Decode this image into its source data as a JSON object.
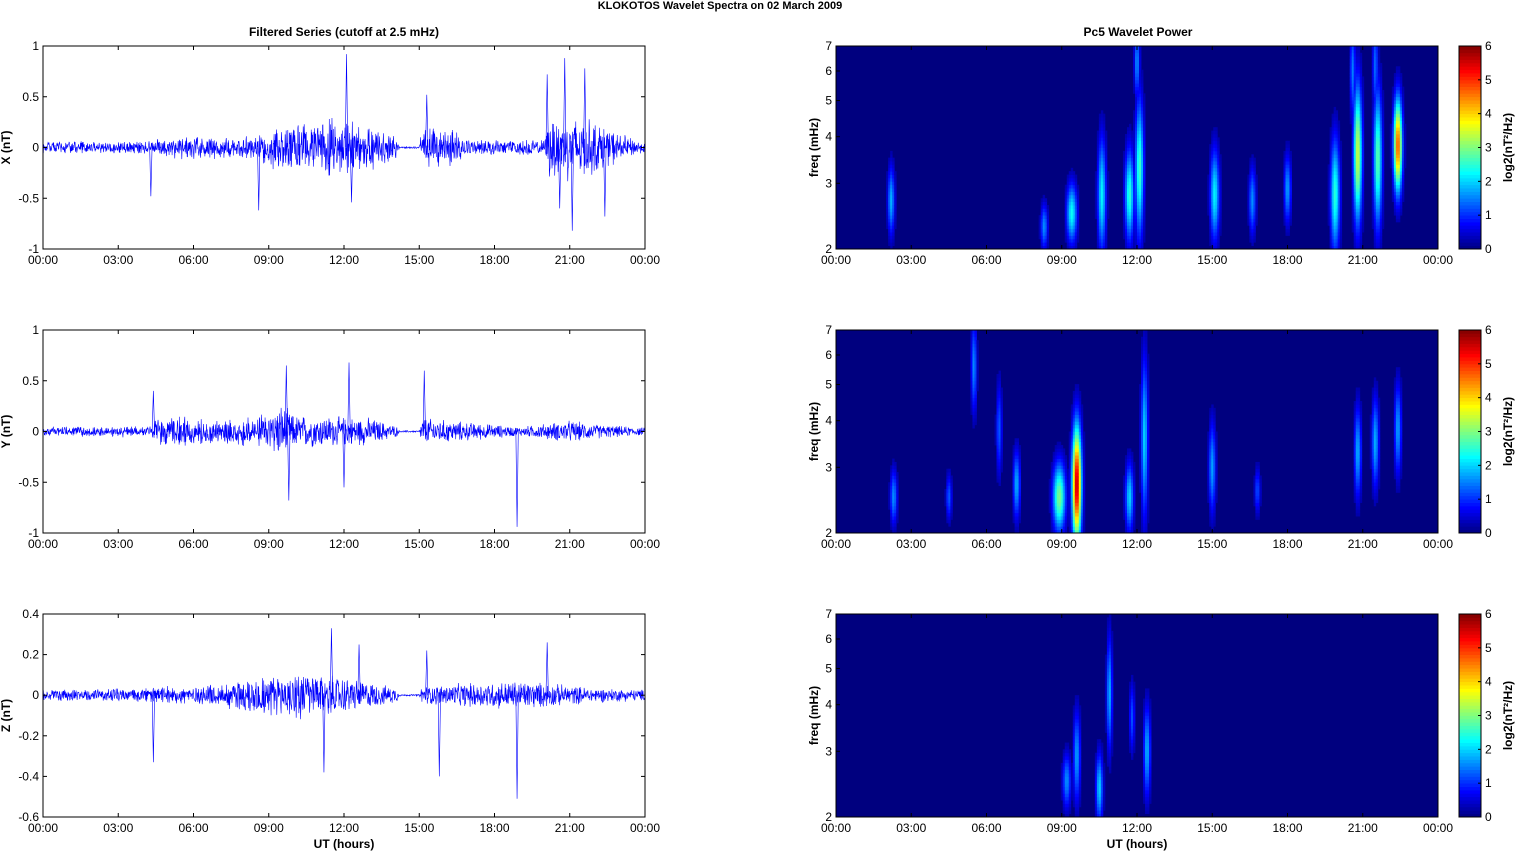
{
  "figure_title": "KLOKOTOS Wavelet Spectra on 02 March      2009",
  "left_title": "Filtered Series (cutoff at 2.5 mHz)",
  "right_title": "Pc5 Wavelet Power",
  "xlabel": "UT (hours)",
  "x_tick_labels": [
    "00:00",
    "03:00",
    "06:00",
    "09:00",
    "12:00",
    "15:00",
    "18:00",
    "21:00",
    "00:00"
  ],
  "colors": {
    "trace": "#0000ff",
    "background": "#00007f"
  },
  "chart_data": [
    {
      "type": "line",
      "ylabel": "X (nT)",
      "xlim": [
        0,
        24
      ],
      "ylim": [
        -1,
        1
      ],
      "y_ticks": [
        "1",
        "0.5",
        "0",
        "-0.5",
        "-1"
      ],
      "y_tick_values": [
        1,
        0.5,
        0,
        -0.5,
        -1
      ],
      "series": [
        {
          "envelope": [
            {
              "x": 0,
              "amp": 0.06
            },
            {
              "x": 4.3,
              "amp": 0.07
            },
            {
              "x": 4.5,
              "amp": 0.12
            },
            {
              "x": 8.5,
              "amp": 0.12
            },
            {
              "x": 9,
              "amp": 0.22
            },
            {
              "x": 11.5,
              "amp": 0.3
            },
            {
              "x": 13,
              "amp": 0.25
            },
            {
              "x": 14.1,
              "amp": 0.12
            },
            {
              "x": 14.2,
              "amp": 0.01
            },
            {
              "x": 15.0,
              "amp": 0.01
            },
            {
              "x": 15.1,
              "amp": 0.2
            },
            {
              "x": 16.5,
              "amp": 0.2
            },
            {
              "x": 17,
              "amp": 0.08
            },
            {
              "x": 20,
              "amp": 0.08
            },
            {
              "x": 20.2,
              "amp": 0.35
            },
            {
              "x": 21.5,
              "amp": 0.35
            },
            {
              "x": 23,
              "amp": 0.15
            },
            {
              "x": 24,
              "amp": 0.05
            }
          ],
          "spikes": [
            {
              "x": 4.3,
              "y": -0.48
            },
            {
              "x": 8.6,
              "y": -0.62
            },
            {
              "x": 12.1,
              "y": 0.92
            },
            {
              "x": 12.3,
              "y": -0.54
            },
            {
              "x": 15.3,
              "y": 0.52
            },
            {
              "x": 20.1,
              "y": 0.72
            },
            {
              "x": 20.8,
              "y": 0.88
            },
            {
              "x": 21.1,
              "y": -0.82
            },
            {
              "x": 21.6,
              "y": 0.78
            },
            {
              "x": 22.4,
              "y": -0.68
            },
            {
              "x": 20.6,
              "y": -0.6
            }
          ]
        }
      ]
    },
    {
      "type": "line",
      "ylabel": "Y (nT)",
      "xlim": [
        0,
        24
      ],
      "ylim": [
        -1,
        1
      ],
      "y_ticks": [
        "1",
        "0.5",
        "0",
        "-0.5",
        "-1"
      ],
      "y_tick_values": [
        1,
        0.5,
        0,
        -0.5,
        -1
      ],
      "series": [
        {
          "envelope": [
            {
              "x": 0,
              "amp": 0.06
            },
            {
              "x": 4.3,
              "amp": 0.06
            },
            {
              "x": 4.5,
              "amp": 0.15
            },
            {
              "x": 8.5,
              "amp": 0.15
            },
            {
              "x": 9.5,
              "amp": 0.3
            },
            {
              "x": 10,
              "amp": 0.18
            },
            {
              "x": 13,
              "amp": 0.15
            },
            {
              "x": 14.1,
              "amp": 0.06
            },
            {
              "x": 14.2,
              "amp": 0.01
            },
            {
              "x": 15.0,
              "amp": 0.01
            },
            {
              "x": 15.1,
              "amp": 0.15
            },
            {
              "x": 17,
              "amp": 0.1
            },
            {
              "x": 19,
              "amp": 0.05
            },
            {
              "x": 21,
              "amp": 0.12
            },
            {
              "x": 22,
              "amp": 0.08
            },
            {
              "x": 24,
              "amp": 0.04
            }
          ],
          "spikes": [
            {
              "x": 9.7,
              "y": 0.65
            },
            {
              "x": 9.8,
              "y": -0.68
            },
            {
              "x": 12.2,
              "y": 0.68
            },
            {
              "x": 15.2,
              "y": 0.6
            },
            {
              "x": 18.9,
              "y": -0.94
            },
            {
              "x": 12.0,
              "y": -0.55
            },
            {
              "x": 4.4,
              "y": 0.4
            }
          ]
        }
      ]
    },
    {
      "type": "line",
      "ylabel": "Z (nT)",
      "xlim": [
        0,
        24
      ],
      "ylim": [
        -0.6,
        0.4
      ],
      "y_ticks": [
        "0.4",
        "0.2",
        "0",
        "-0.2",
        "-0.4",
        "-0.6"
      ],
      "y_tick_values": [
        0.4,
        0.2,
        0,
        -0.2,
        -0.4,
        -0.6
      ],
      "series": [
        {
          "envelope": [
            {
              "x": 0,
              "amp": 0.03
            },
            {
              "x": 4,
              "amp": 0.04
            },
            {
              "x": 7,
              "amp": 0.06
            },
            {
              "x": 8,
              "amp": 0.1
            },
            {
              "x": 10,
              "amp": 0.13
            },
            {
              "x": 12,
              "amp": 0.1
            },
            {
              "x": 14.1,
              "amp": 0.04
            },
            {
              "x": 14.2,
              "amp": 0.005
            },
            {
              "x": 15.0,
              "amp": 0.005
            },
            {
              "x": 15.1,
              "amp": 0.05
            },
            {
              "x": 17.5,
              "amp": 0.07
            },
            {
              "x": 19,
              "amp": 0.08
            },
            {
              "x": 20.5,
              "amp": 0.06
            },
            {
              "x": 22,
              "amp": 0.04
            },
            {
              "x": 24,
              "amp": 0.03
            }
          ],
          "spikes": [
            {
              "x": 11.5,
              "y": 0.33
            },
            {
              "x": 11.2,
              "y": -0.38
            },
            {
              "x": 12.6,
              "y": 0.25
            },
            {
              "x": 15.8,
              "y": -0.4
            },
            {
              "x": 18.9,
              "y": -0.51
            },
            {
              "x": 20.1,
              "y": 0.26
            },
            {
              "x": 4.4,
              "y": -0.33
            },
            {
              "x": 15.3,
              "y": 0.22
            }
          ]
        }
      ]
    },
    {
      "type": "heatmap",
      "ylabel": "freq (mHz)",
      "xlim": [
        0,
        24
      ],
      "ylim": [
        2,
        7
      ],
      "y_scale": "log",
      "y_ticks": [
        "7",
        "6",
        "5",
        "4",
        "3",
        "2"
      ],
      "y_tick_values": [
        7,
        6,
        5,
        4,
        3,
        2
      ],
      "clim": [
        0,
        6
      ],
      "colormap": "jet",
      "colorbar_label": "log2(nT²/Hz)",
      "colorbar_ticks": [
        "6",
        "5",
        "4",
        "3",
        "2",
        "1",
        "0"
      ],
      "blobs": [
        {
          "t": 2.2,
          "f": 2.7,
          "peak": 1.8,
          "w": 0.1,
          "fs": 0.15
        },
        {
          "t": 8.3,
          "f": 2.3,
          "peak": 1.6,
          "w": 0.1,
          "fs": 0.1
        },
        {
          "t": 9.4,
          "f": 2.5,
          "peak": 2.3,
          "w": 0.15,
          "fs": 0.13
        },
        {
          "t": 10.6,
          "f": 2.8,
          "peak": 2.2,
          "w": 0.12,
          "fs": 0.25
        },
        {
          "t": 11.7,
          "f": 2.8,
          "peak": 2.5,
          "w": 0.13,
          "fs": 0.2
        },
        {
          "t": 12.1,
          "f": 3.3,
          "peak": 2.6,
          "w": 0.12,
          "fs": 0.3
        },
        {
          "t": 15.1,
          "f": 2.8,
          "peak": 2.2,
          "w": 0.13,
          "fs": 0.2
        },
        {
          "t": 16.6,
          "f": 2.7,
          "peak": 1.6,
          "w": 0.1,
          "fs": 0.15
        },
        {
          "t": 18.0,
          "f": 2.9,
          "peak": 1.7,
          "w": 0.1,
          "fs": 0.15
        },
        {
          "t": 19.9,
          "f": 2.8,
          "peak": 2.5,
          "w": 0.13,
          "fs": 0.25
        },
        {
          "t": 20.8,
          "f": 3.6,
          "peak": 3.5,
          "w": 0.12,
          "fs": 0.3
        },
        {
          "t": 21.6,
          "f": 3.5,
          "peak": 2.8,
          "w": 0.12,
          "fs": 0.3
        },
        {
          "t": 22.4,
          "f": 3.8,
          "peak": 4.8,
          "w": 0.12,
          "fs": 0.2
        },
        {
          "t": 12.0,
          "f": 6.3,
          "peak": 1.6,
          "w": 0.08,
          "fs": 0.15
        },
        {
          "t": 20.6,
          "f": 6.0,
          "peak": 1.5,
          "w": 0.08,
          "fs": 0.2
        },
        {
          "t": 21.5,
          "f": 6.2,
          "peak": 1.4,
          "w": 0.08,
          "fs": 0.2
        }
      ]
    },
    {
      "type": "heatmap",
      "ylabel": "freq (mHz)",
      "xlim": [
        0,
        24
      ],
      "ylim": [
        2,
        7
      ],
      "y_scale": "log",
      "y_ticks": [
        "7",
        "6",
        "5",
        "4",
        "3",
        "2"
      ],
      "y_tick_values": [
        7,
        6,
        5,
        4,
        3,
        2
      ],
      "clim": [
        0,
        6
      ],
      "colormap": "jet",
      "colorbar_label": "log2(nT²/Hz)",
      "colorbar_ticks": [
        "6",
        "5",
        "4",
        "3",
        "2",
        "1",
        "0"
      ],
      "blobs": [
        {
          "t": 2.3,
          "f": 2.5,
          "peak": 1.6,
          "w": 0.1,
          "fs": 0.12
        },
        {
          "t": 4.5,
          "f": 2.5,
          "peak": 1.3,
          "w": 0.08,
          "fs": 0.1
        },
        {
          "t": 5.5,
          "f": 5.6,
          "peak": 1.6,
          "w": 0.08,
          "fs": 0.2
        },
        {
          "t": 7.2,
          "f": 2.7,
          "peak": 1.8,
          "w": 0.1,
          "fs": 0.15
        },
        {
          "t": 8.9,
          "f": 2.5,
          "peak": 3.0,
          "w": 0.18,
          "fs": 0.15
        },
        {
          "t": 9.6,
          "f": 2.7,
          "peak": 5.7,
          "w": 0.13,
          "fs": 0.25
        },
        {
          "t": 11.7,
          "f": 2.5,
          "peak": 2.0,
          "w": 0.12,
          "fs": 0.15
        },
        {
          "t": 12.3,
          "f": 3.6,
          "peak": 2.0,
          "w": 0.1,
          "fs": 0.35
        },
        {
          "t": 15.0,
          "f": 3.0,
          "peak": 1.7,
          "w": 0.1,
          "fs": 0.2
        },
        {
          "t": 20.8,
          "f": 3.3,
          "peak": 1.8,
          "w": 0.1,
          "fs": 0.2
        },
        {
          "t": 21.5,
          "f": 3.5,
          "peak": 1.8,
          "w": 0.1,
          "fs": 0.2
        },
        {
          "t": 22.4,
          "f": 3.8,
          "peak": 1.7,
          "w": 0.1,
          "fs": 0.2
        },
        {
          "t": 6.5,
          "f": 3.8,
          "peak": 1.3,
          "w": 0.08,
          "fs": 0.2
        },
        {
          "t": 16.8,
          "f": 2.6,
          "peak": 1.2,
          "w": 0.08,
          "fs": 0.1
        }
      ]
    },
    {
      "type": "heatmap",
      "ylabel": "freq (mHz)",
      "xlim": [
        0,
        24
      ],
      "ylim": [
        2,
        7
      ],
      "y_scale": "log",
      "y_ticks": [
        "7",
        "6",
        "5",
        "4",
        "3",
        "2"
      ],
      "y_tick_values": [
        7,
        6,
        5,
        4,
        3,
        2
      ],
      "clim": [
        0,
        6
      ],
      "colormap": "jet",
      "colorbar_label": "log2(nT²/Hz)",
      "colorbar_ticks": [
        "6",
        "5",
        "4",
        "3",
        "2",
        "1",
        "0"
      ],
      "blobs": [
        {
          "t": 9.2,
          "f": 2.5,
          "peak": 1.6,
          "w": 0.12,
          "fs": 0.12
        },
        {
          "t": 9.6,
          "f": 2.9,
          "peak": 1.7,
          "w": 0.1,
          "fs": 0.2
        },
        {
          "t": 10.5,
          "f": 2.4,
          "peak": 2.0,
          "w": 0.1,
          "fs": 0.15
        },
        {
          "t": 10.9,
          "f": 4.3,
          "peak": 1.8,
          "w": 0.08,
          "fs": 0.25
        },
        {
          "t": 12.4,
          "f": 3.0,
          "peak": 1.8,
          "w": 0.1,
          "fs": 0.2
        },
        {
          "t": 11.8,
          "f": 3.7,
          "peak": 1.2,
          "w": 0.08,
          "fs": 0.15
        }
      ]
    }
  ]
}
